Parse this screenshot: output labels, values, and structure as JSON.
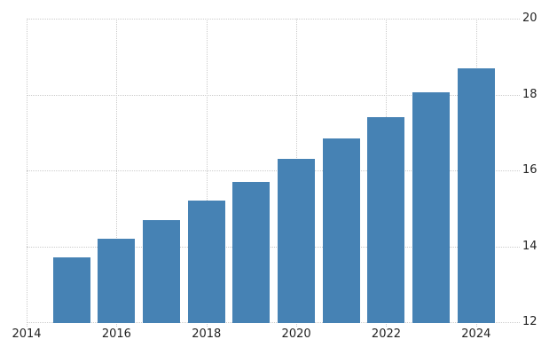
{
  "colors": {
    "background": "#ffffff",
    "bar": "#4682b4",
    "grid": "#cccccc",
    "text": "#222222"
  },
  "chart_data": {
    "type": "bar",
    "title": "",
    "xlabel": "",
    "ylabel": "",
    "categories": [
      2015,
      2016,
      2017,
      2018,
      2019,
      2020,
      2021,
      2022,
      2023,
      2024
    ],
    "values": [
      13.7,
      14.2,
      14.7,
      15.2,
      15.7,
      16.3,
      16.85,
      17.4,
      18.05,
      18.7
    ],
    "ylim": [
      12,
      20
    ],
    "xlim": [
      2014,
      2024.97
    ],
    "y_ticks": [
      12,
      14,
      16,
      18,
      20
    ],
    "x_ticks": [
      2014,
      2016,
      2018,
      2020,
      2022,
      2024
    ],
    "grid": "dotted",
    "legend_position": "none",
    "y_axis_side": "right"
  }
}
